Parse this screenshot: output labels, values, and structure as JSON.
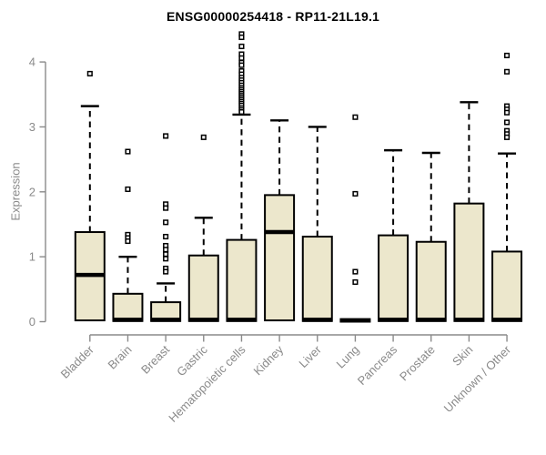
{
  "chart_data": {
    "type": "boxplot",
    "title": "ENSG00000254418 - RP11-21L19.1",
    "ylabel": "Expression",
    "xlabel": "",
    "ylim": [
      0,
      4.45
    ],
    "yticks": [
      0,
      1,
      2,
      3,
      4
    ],
    "grid": false,
    "legend": "none",
    "categories": [
      "Bladder",
      "Brain",
      "Breast",
      "Gastric",
      "Hematopoietic cells",
      "Kidney",
      "Liver",
      "Lung",
      "Pancreas",
      "Prostate",
      "Skin",
      "Unknown / Other"
    ],
    "series": [
      {
        "name": "Bladder",
        "q1": 0.02,
        "median": 0.72,
        "q3": 1.38,
        "whisker_low": 0,
        "whisker_high": 3.32,
        "outliers": [
          3.82
        ]
      },
      {
        "name": "Brain",
        "q1": 0.01,
        "median": 0.03,
        "q3": 0.43,
        "whisker_low": 0,
        "whisker_high": 1.0,
        "outliers": [
          2.62,
          2.04,
          1.34,
          1.29,
          1.24
        ]
      },
      {
        "name": "Breast",
        "q1": 0.01,
        "median": 0.03,
        "q3": 0.3,
        "whisker_low": 0,
        "whisker_high": 0.59,
        "outliers": [
          2.86,
          1.81,
          1.75,
          1.53,
          1.31,
          1.17,
          1.11,
          1.04,
          0.97,
          0.82,
          0.77
        ]
      },
      {
        "name": "Gastric",
        "q1": 0.01,
        "median": 0.03,
        "q3": 1.02,
        "whisker_low": 0,
        "whisker_high": 1.6,
        "outliers": [
          2.84
        ]
      },
      {
        "name": "Hematopoietic cells",
        "q1": 0.01,
        "median": 0.03,
        "q3": 1.26,
        "whisker_low": 0,
        "whisker_high": 3.19,
        "outliers": [
          4.43,
          4.38,
          4.24,
          4.12,
          4.06,
          3.99,
          3.95,
          3.86,
          3.81,
          3.76,
          3.72,
          3.68,
          3.64,
          3.6,
          3.57,
          3.54,
          3.51,
          3.48,
          3.45,
          3.42,
          3.39,
          3.36,
          3.33,
          3.29,
          3.26,
          3.23
        ]
      },
      {
        "name": "Kidney",
        "q1": 0.02,
        "median": 1.38,
        "q3": 1.95,
        "whisker_low": 0,
        "whisker_high": 3.1,
        "outliers": []
      },
      {
        "name": "Liver",
        "q1": 0.01,
        "median": 0.03,
        "q3": 1.31,
        "whisker_low": 0,
        "whisker_high": 3.0,
        "outliers": []
      },
      {
        "name": "Lung",
        "q1": 0.0,
        "median": 0.02,
        "q3": 0.04,
        "whisker_low": 0,
        "whisker_high": 0.04,
        "outliers": [
          3.15,
          1.97,
          0.77,
          0.61
        ]
      },
      {
        "name": "Pancreas",
        "q1": 0.01,
        "median": 0.03,
        "q3": 1.33,
        "whisker_low": 0,
        "whisker_high": 2.64,
        "outliers": []
      },
      {
        "name": "Prostate",
        "q1": 0.01,
        "median": 0.03,
        "q3": 1.23,
        "whisker_low": 0,
        "whisker_high": 2.6,
        "outliers": []
      },
      {
        "name": "Skin",
        "q1": 0.01,
        "median": 0.03,
        "q3": 1.82,
        "whisker_low": 0,
        "whisker_high": 3.38,
        "outliers": []
      },
      {
        "name": "Unknown / Other",
        "q1": 0.01,
        "median": 0.03,
        "q3": 1.08,
        "whisker_low": 0,
        "whisker_high": 2.59,
        "outliers": [
          4.1,
          3.85,
          3.32,
          3.27,
          3.22,
          3.07,
          2.94,
          2.89,
          2.84
        ]
      }
    ],
    "colors": {
      "box_fill": "#ece7cc",
      "box_border": "#000000",
      "median": "#000000",
      "whisker": "#000000",
      "outlier_stroke": "#000000",
      "outlier_fill": "#ffffff",
      "axis": "#8a8a8a",
      "tick_label": "#8a8a8a",
      "title": "#000000"
    }
  }
}
